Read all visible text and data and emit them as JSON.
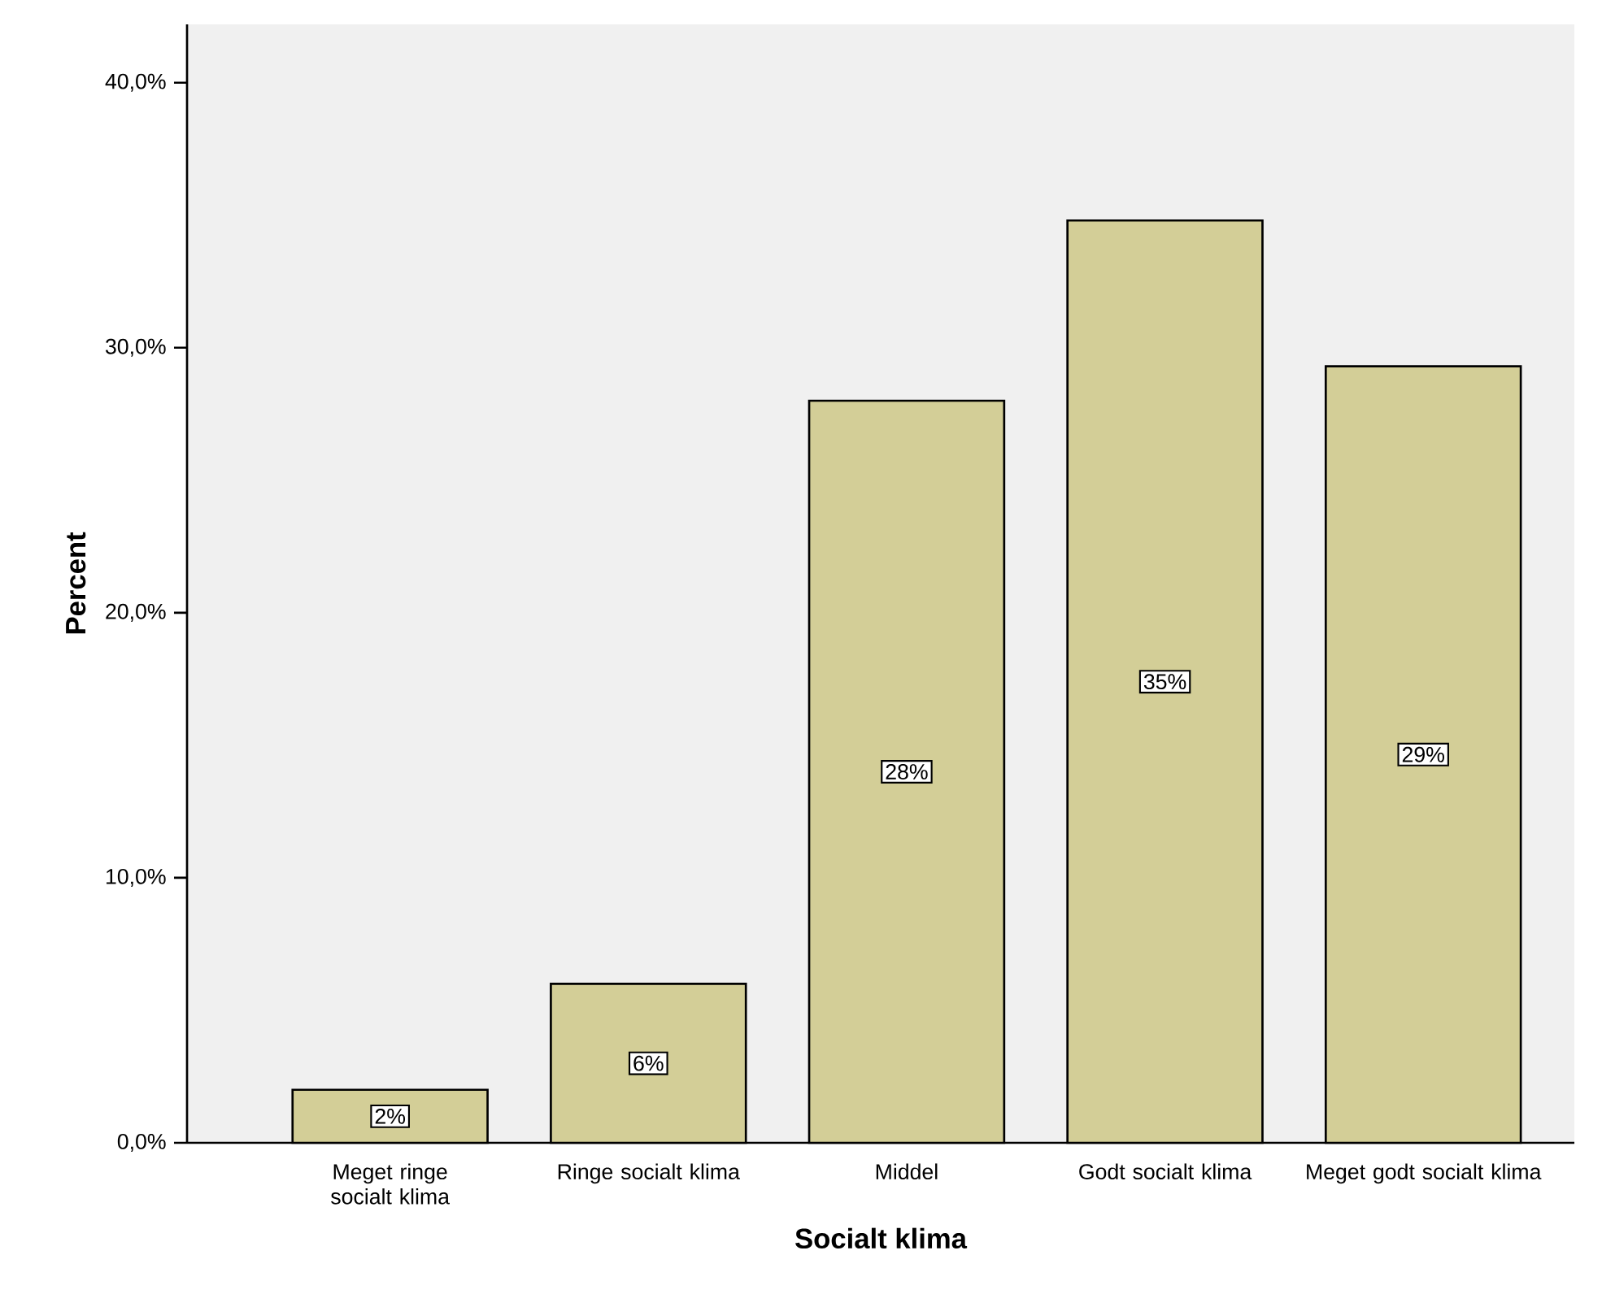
{
  "chart_data": {
    "type": "bar",
    "xlabel": "Socialt klima",
    "ylabel": "Percent",
    "categories": [
      "Meget ringe socialt klima",
      "Ringe socialt klima",
      "Middel",
      "Godt socialt klima",
      "Meget godt socialt klima"
    ],
    "values": [
      2.0,
      6.0,
      28.0,
      34.8,
      29.3
    ],
    "value_labels": [
      "2%",
      "6%",
      "28%",
      "35%",
      "29%"
    ],
    "color": "#d3ce97",
    "ylim": [
      0,
      42.2
    ],
    "yticks": [
      {
        "value": 0,
        "label": "0,0%"
      },
      {
        "value": 10,
        "label": "10,0%"
      },
      {
        "value": 20,
        "label": "20,0%"
      },
      {
        "value": 30,
        "label": "30,0%"
      },
      {
        "value": 40,
        "label": "40,0%"
      }
    ]
  }
}
